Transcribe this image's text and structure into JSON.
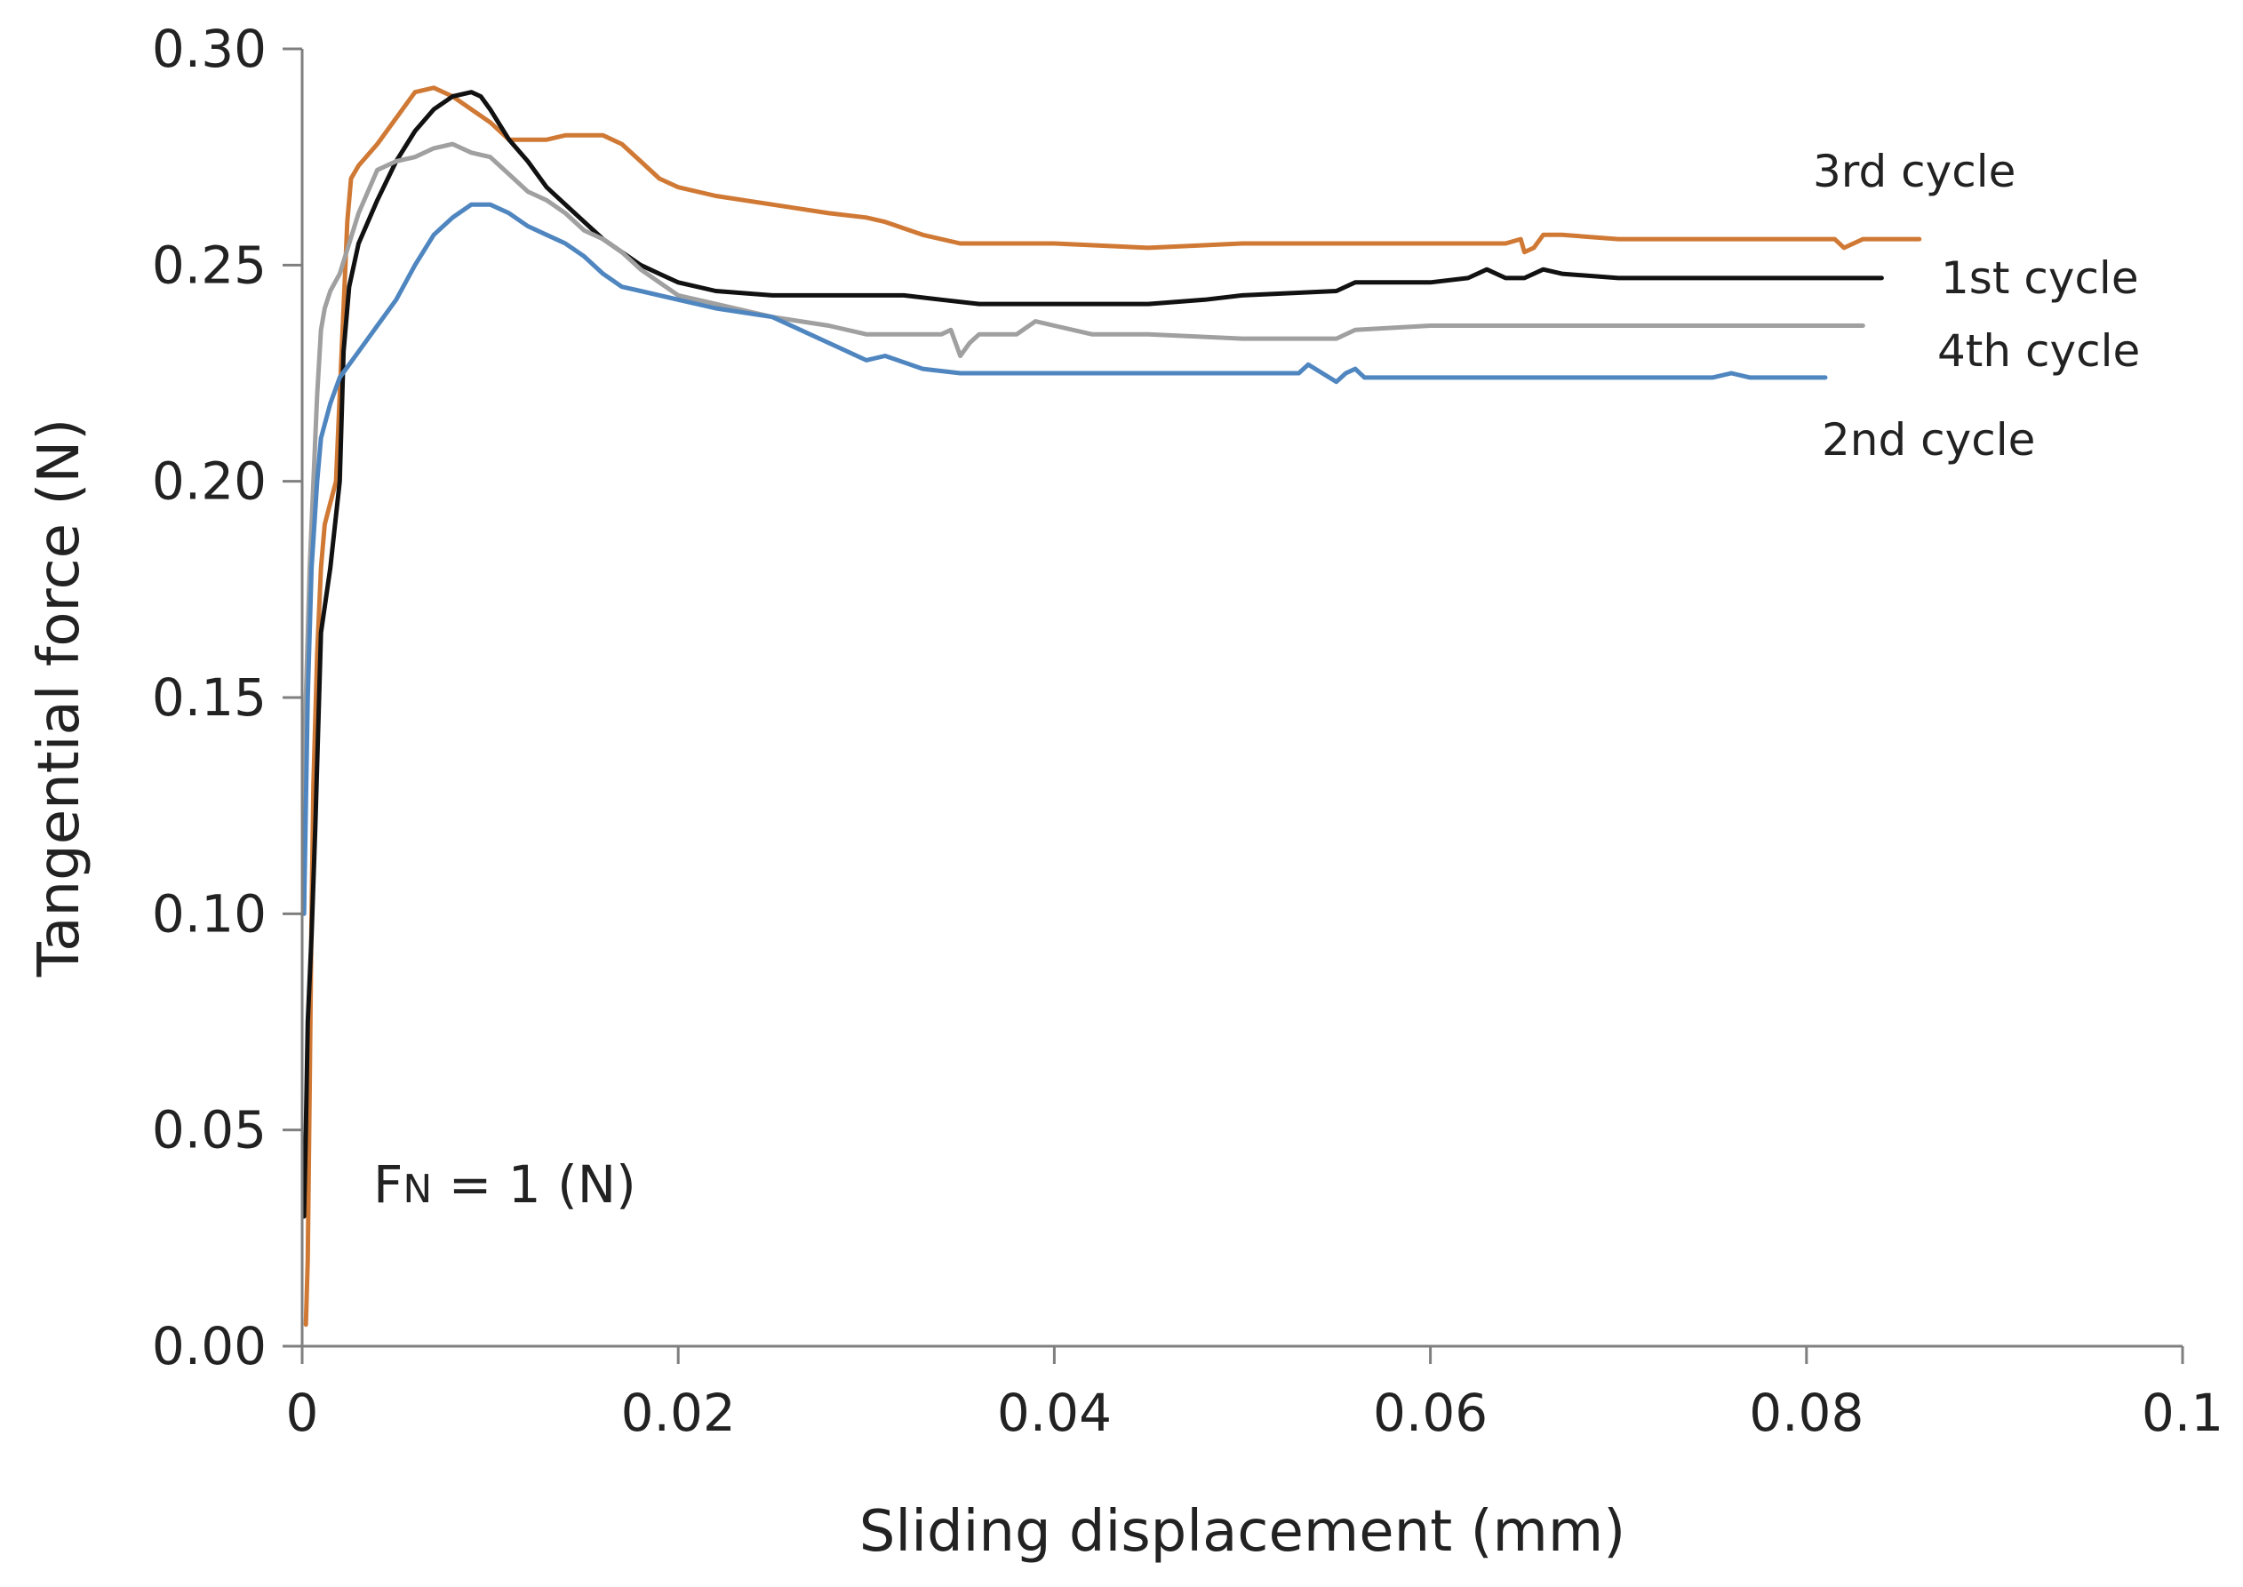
{
  "chart_data": {
    "type": "line",
    "title": "",
    "xlabel": "Sliding displacement (mm)",
    "ylabel": "Tangential force (N)",
    "xlim": [
      0,
      0.1
    ],
    "ylim": [
      0,
      0.3
    ],
    "x_ticks": [
      0,
      0.02,
      0.04,
      0.06,
      0.08,
      0.1
    ],
    "x_tick_labels": [
      "0",
      "0.02",
      "0.04",
      "0.06",
      "0.08",
      "0.1"
    ],
    "y_ticks": [
      0,
      0.05,
      0.1,
      0.15,
      0.2,
      0.25,
      0.3
    ],
    "y_tick_labels": [
      "0.00",
      "0.05",
      "0.10",
      "0.15",
      "0.20",
      "0.25",
      "0.30"
    ],
    "grid": false,
    "legend": "none",
    "annotation": {
      "prefix": "F",
      "subscript": "N",
      "suffix": " = 1 (N)"
    },
    "series": [
      {
        "name": "3rd cycle",
        "color": "#D07935",
        "x": [
          0.0002,
          0.0003,
          0.0004,
          0.0005,
          0.0006,
          0.0008,
          0.001,
          0.0012,
          0.0015,
          0.0018,
          0.002,
          0.0022,
          0.0024,
          0.0026,
          0.003,
          0.004,
          0.005,
          0.006,
          0.007,
          0.008,
          0.009,
          0.01,
          0.011,
          0.012,
          0.013,
          0.014,
          0.015,
          0.016,
          0.017,
          0.018,
          0.019,
          0.02,
          0.022,
          0.025,
          0.028,
          0.03,
          0.031,
          0.033,
          0.035,
          0.04,
          0.045,
          0.05,
          0.055,
          0.06,
          0.064,
          0.0648,
          0.065,
          0.0655,
          0.066,
          0.067,
          0.07,
          0.08,
          0.0815,
          0.082,
          0.083,
          0.086
        ],
        "y": [
          0.005,
          0.02,
          0.06,
          0.1,
          0.13,
          0.16,
          0.18,
          0.19,
          0.195,
          0.2,
          0.22,
          0.24,
          0.26,
          0.27,
          0.273,
          0.278,
          0.284,
          0.29,
          0.291,
          0.289,
          0.286,
          0.283,
          0.279,
          0.279,
          0.279,
          0.28,
          0.28,
          0.28,
          0.278,
          0.274,
          0.27,
          0.268,
          0.266,
          0.264,
          0.262,
          0.261,
          0.26,
          0.257,
          0.255,
          0.255,
          0.254,
          0.255,
          0.255,
          0.255,
          0.255,
          0.256,
          0.253,
          0.254,
          0.257,
          0.257,
          0.256,
          0.256,
          0.256,
          0.254,
          0.256,
          0.256
        ]
      },
      {
        "name": "1st cycle",
        "color": "#111111",
        "x": [
          0.0001,
          0.0002,
          0.0003,
          0.0005,
          0.0007,
          0.001,
          0.0015,
          0.002,
          0.0022,
          0.0025,
          0.003,
          0.004,
          0.005,
          0.006,
          0.007,
          0.008,
          0.009,
          0.0095,
          0.01,
          0.011,
          0.012,
          0.013,
          0.014,
          0.015,
          0.016,
          0.017,
          0.018,
          0.019,
          0.02,
          0.022,
          0.025,
          0.028,
          0.03,
          0.032,
          0.034,
          0.036,
          0.04,
          0.045,
          0.048,
          0.05,
          0.055,
          0.056,
          0.058,
          0.06,
          0.062,
          0.063,
          0.064,
          0.065,
          0.066,
          0.067,
          0.07,
          0.075,
          0.08,
          0.084
        ],
        "y": [
          0.03,
          0.05,
          0.075,
          0.095,
          0.12,
          0.165,
          0.18,
          0.2,
          0.23,
          0.245,
          0.255,
          0.265,
          0.274,
          0.281,
          0.286,
          0.289,
          0.29,
          0.289,
          0.286,
          0.279,
          0.274,
          0.268,
          0.264,
          0.26,
          0.256,
          0.253,
          0.25,
          0.248,
          0.246,
          0.244,
          0.243,
          0.243,
          0.243,
          0.243,
          0.242,
          0.241,
          0.241,
          0.241,
          0.242,
          0.243,
          0.244,
          0.246,
          0.246,
          0.246,
          0.247,
          0.249,
          0.247,
          0.247,
          0.249,
          0.248,
          0.247,
          0.247,
          0.247,
          0.247
        ]
      },
      {
        "name": "4th cycle",
        "color": "#A0A0A0",
        "x": [
          0.0001,
          0.0002,
          0.0004,
          0.0006,
          0.0008,
          0.001,
          0.0012,
          0.0015,
          0.002,
          0.003,
          0.004,
          0.005,
          0.006,
          0.007,
          0.008,
          0.009,
          0.01,
          0.011,
          0.012,
          0.013,
          0.014,
          0.015,
          0.016,
          0.017,
          0.018,
          0.019,
          0.02,
          0.022,
          0.025,
          0.028,
          0.03,
          0.034,
          0.0345,
          0.035,
          0.0355,
          0.036,
          0.038,
          0.039,
          0.04,
          0.042,
          0.045,
          0.05,
          0.055,
          0.056,
          0.06,
          0.07,
          0.08,
          0.083
        ],
        "y": [
          0.1,
          0.15,
          0.18,
          0.2,
          0.22,
          0.235,
          0.24,
          0.244,
          0.248,
          0.262,
          0.272,
          0.274,
          0.275,
          0.277,
          0.278,
          0.276,
          0.275,
          0.271,
          0.267,
          0.265,
          0.262,
          0.258,
          0.256,
          0.253,
          0.249,
          0.246,
          0.243,
          0.241,
          0.238,
          0.236,
          0.234,
          0.234,
          0.235,
          0.229,
          0.232,
          0.234,
          0.234,
          0.237,
          0.236,
          0.234,
          0.234,
          0.233,
          0.233,
          0.235,
          0.236,
          0.236,
          0.236,
          0.236
        ]
      },
      {
        "name": "2nd cycle",
        "color": "#4F86C0",
        "x": [
          0.0001,
          0.0003,
          0.0005,
          0.0008,
          0.001,
          0.0015,
          0.002,
          0.003,
          0.004,
          0.005,
          0.006,
          0.007,
          0.008,
          0.009,
          0.01,
          0.011,
          0.012,
          0.013,
          0.014,
          0.015,
          0.016,
          0.017,
          0.018,
          0.02,
          0.022,
          0.025,
          0.028,
          0.03,
          0.031,
          0.033,
          0.035,
          0.04,
          0.045,
          0.05,
          0.053,
          0.0535,
          0.055,
          0.0555,
          0.056,
          0.0565,
          0.06,
          0.07,
          0.075,
          0.076,
          0.077,
          0.081
        ],
        "y": [
          0.1,
          0.15,
          0.18,
          0.2,
          0.21,
          0.218,
          0.224,
          0.23,
          0.236,
          0.242,
          0.25,
          0.257,
          0.261,
          0.264,
          0.264,
          0.262,
          0.259,
          0.257,
          0.255,
          0.252,
          0.248,
          0.245,
          0.244,
          0.242,
          0.24,
          0.238,
          0.232,
          0.228,
          0.229,
          0.226,
          0.225,
          0.225,
          0.225,
          0.225,
          0.225,
          0.227,
          0.223,
          0.225,
          0.226,
          0.224,
          0.224,
          0.224,
          0.224,
          0.225,
          0.224,
          0.224
        ]
      }
    ]
  }
}
